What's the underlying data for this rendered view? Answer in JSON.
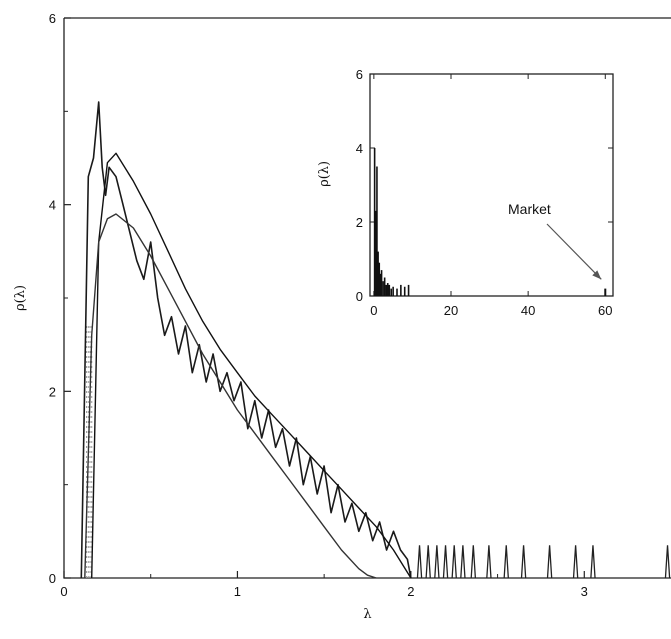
{
  "chart_data": [
    {
      "type": "line",
      "title": "",
      "xlabel": "λ",
      "ylabel": "ρ(λ)",
      "xlim": [
        0,
        3.5
      ],
      "ylim": [
        0,
        6
      ],
      "x_ticks": [
        "0",
        "1",
        "2",
        "3"
      ],
      "y_ticks": [
        "0",
        "2",
        "4",
        "6"
      ],
      "grid": false,
      "series": [
        {
          "style": "noisy empirical density",
          "x": [
            0.1,
            0.14,
            0.17,
            0.2,
            0.22,
            0.24,
            0.26,
            0.3,
            0.34,
            0.38,
            0.42,
            0.46,
            0.5,
            0.54,
            0.58,
            0.62,
            0.66,
            0.7,
            0.74,
            0.78,
            0.82,
            0.86,
            0.9,
            0.94,
            0.98,
            1.02,
            1.06,
            1.1,
            1.14,
            1.18,
            1.22,
            1.26,
            1.3,
            1.34,
            1.38,
            1.42,
            1.46,
            1.5,
            1.54,
            1.58,
            1.62,
            1.66,
            1.7,
            1.74,
            1.78,
            1.82,
            1.86,
            1.9,
            1.94,
            1.98,
            2.0
          ],
          "y": [
            0.0,
            4.3,
            4.5,
            5.1,
            4.4,
            4.1,
            4.4,
            4.3,
            4.0,
            3.7,
            3.4,
            3.2,
            3.6,
            3.0,
            2.6,
            2.8,
            2.4,
            2.7,
            2.2,
            2.5,
            2.1,
            2.4,
            2.0,
            2.2,
            1.9,
            2.1,
            1.6,
            1.9,
            1.5,
            1.8,
            1.4,
            1.6,
            1.2,
            1.5,
            1.0,
            1.3,
            0.9,
            1.2,
            0.7,
            1.0,
            0.6,
            0.8,
            0.5,
            0.7,
            0.4,
            0.6,
            0.3,
            0.5,
            0.3,
            0.2,
            0.0
          ]
        },
        {
          "style": "smooth theoretical density (upper)",
          "x": [
            0.16,
            0.2,
            0.25,
            0.3,
            0.4,
            0.5,
            0.6,
            0.7,
            0.8,
            0.9,
            1.0,
            1.1,
            1.2,
            1.3,
            1.4,
            1.5,
            1.6,
            1.7,
            1.8,
            1.9,
            1.96,
            2.0
          ],
          "y": [
            0.0,
            3.6,
            4.45,
            4.55,
            4.25,
            3.9,
            3.5,
            3.1,
            2.75,
            2.45,
            2.2,
            1.95,
            1.75,
            1.55,
            1.35,
            1.15,
            0.95,
            0.75,
            0.55,
            0.3,
            0.12,
            0.0
          ]
        },
        {
          "style": "smooth theoretical density (lower)",
          "x": [
            0.12,
            0.16,
            0.2,
            0.25,
            0.3,
            0.4,
            0.5,
            0.6,
            0.7,
            0.8,
            0.9,
            1.0,
            1.1,
            1.2,
            1.3,
            1.4,
            1.5,
            1.6,
            1.7,
            1.75,
            1.8
          ],
          "y": [
            0.0,
            2.6,
            3.6,
            3.85,
            3.9,
            3.75,
            3.45,
            3.1,
            2.75,
            2.4,
            2.1,
            1.8,
            1.55,
            1.3,
            1.05,
            0.8,
            0.55,
            0.3,
            0.1,
            0.03,
            0.0
          ]
        }
      ],
      "spikes_x": [
        2.05,
        2.1,
        2.15,
        2.2,
        2.25,
        2.3,
        2.36,
        2.45,
        2.55,
        2.65,
        2.8,
        2.95,
        3.05,
        3.48
      ],
      "spikes_y": 0.35,
      "inset": {
        "type": "bar",
        "xlabel": "",
        "ylabel": "ρ(λ)",
        "xlim": [
          -1,
          62
        ],
        "ylim": [
          0,
          6
        ],
        "x_ticks": [
          "0",
          "20",
          "40",
          "60"
        ],
        "y_ticks": [
          "0",
          "2",
          "4",
          "6"
        ],
        "bars_x": [
          0.2,
          0.5,
          0.8,
          1.1,
          1.4,
          1.7,
          2.0,
          2.4,
          2.8,
          3.2,
          3.6,
          4.0,
          4.5,
          5.0,
          6.0,
          7.0,
          8.0,
          9.0
        ],
        "bars_y": [
          4.0,
          2.3,
          3.5,
          1.2,
          0.9,
          0.6,
          0.7,
          0.4,
          0.5,
          0.3,
          0.35,
          0.3,
          0.2,
          0.25,
          0.2,
          0.3,
          0.25,
          0.3
        ],
        "market_x": 60,
        "market_y": 0.2,
        "annotation": "Market"
      }
    }
  ]
}
